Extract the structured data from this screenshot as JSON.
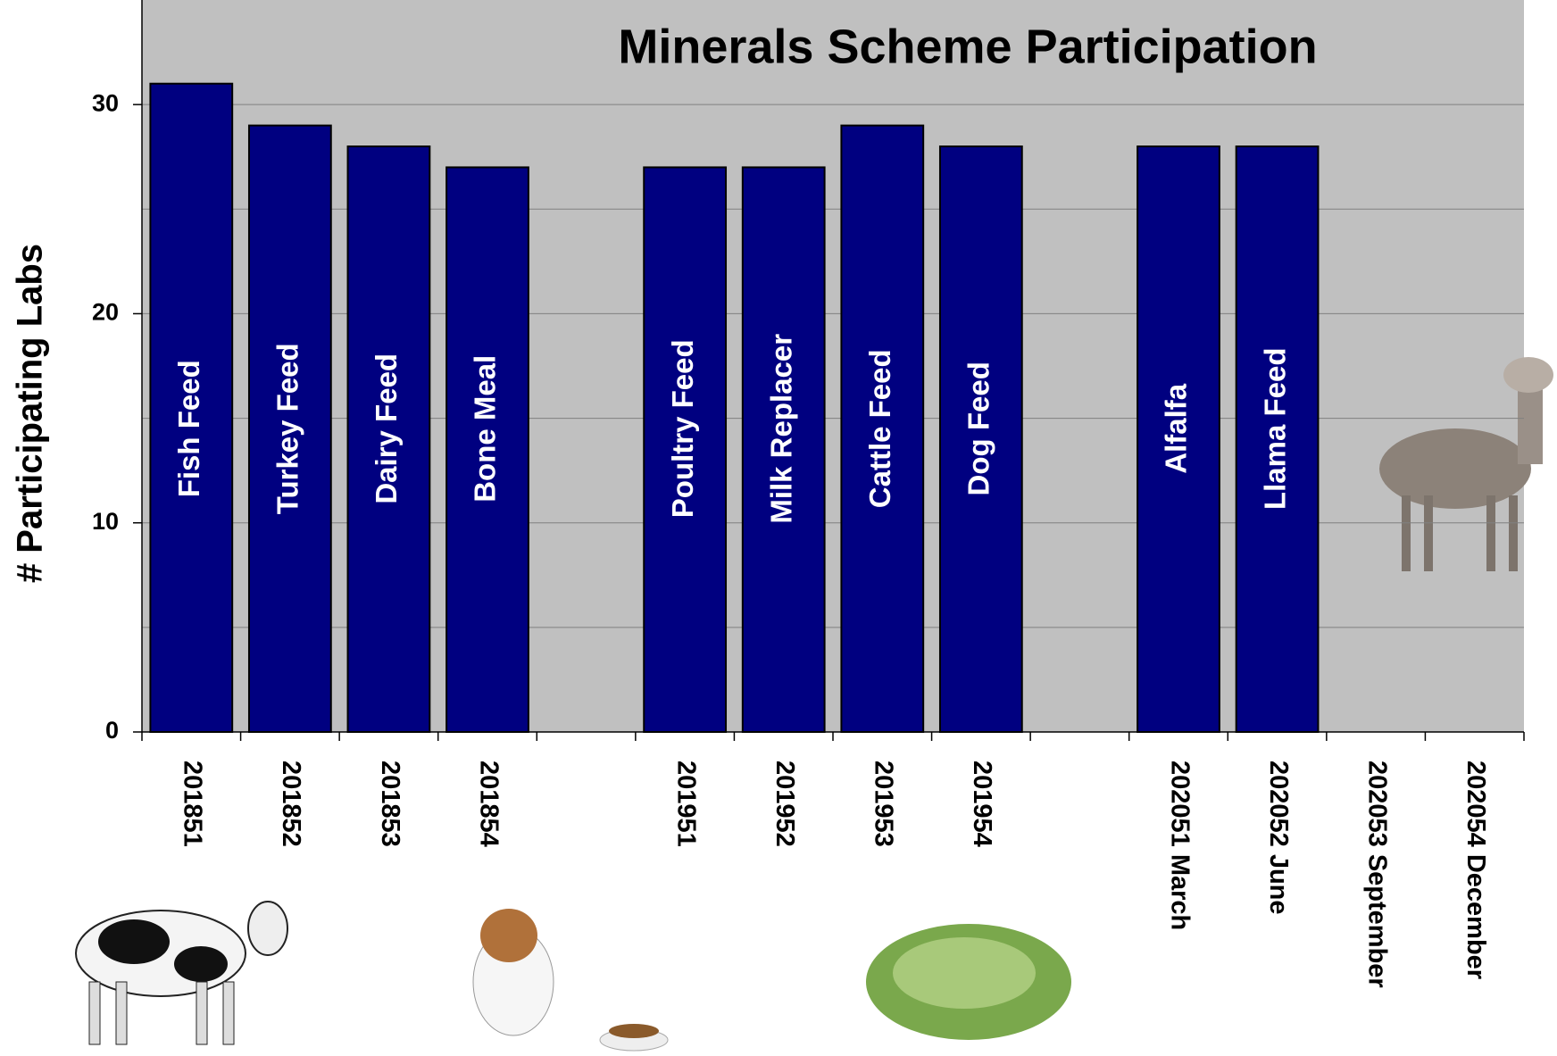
{
  "chart_data": {
    "type": "bar",
    "title": "Minerals Scheme Participation",
    "y_label": "# Participating Labs",
    "categories": [
      "201851",
      "201852",
      "201853",
      "201854",
      null,
      "201951",
      "201952",
      "201953",
      "201954",
      null,
      "202051 March",
      "202052 June",
      "202053 September",
      "202054 December"
    ],
    "values": [
      31,
      29,
      28,
      27,
      null,
      27,
      27,
      29,
      28,
      null,
      28,
      28,
      null,
      null
    ],
    "bar_labels": [
      "Fish Feed",
      "Turkey Feed",
      "Dairy Feed",
      "Bone Meal",
      null,
      "Poultry Feed",
      "Milk Replacer",
      "Cattle Feed",
      "Dog Feed",
      null,
      "Alfalfa",
      "Llama Feed",
      null,
      null
    ],
    "color": "#000080",
    "ylim": [
      0,
      35
    ],
    "yticks": [
      0,
      10,
      20,
      30
    ],
    "minor_yticks": [
      5,
      15,
      25
    ],
    "grid": true
  }
}
